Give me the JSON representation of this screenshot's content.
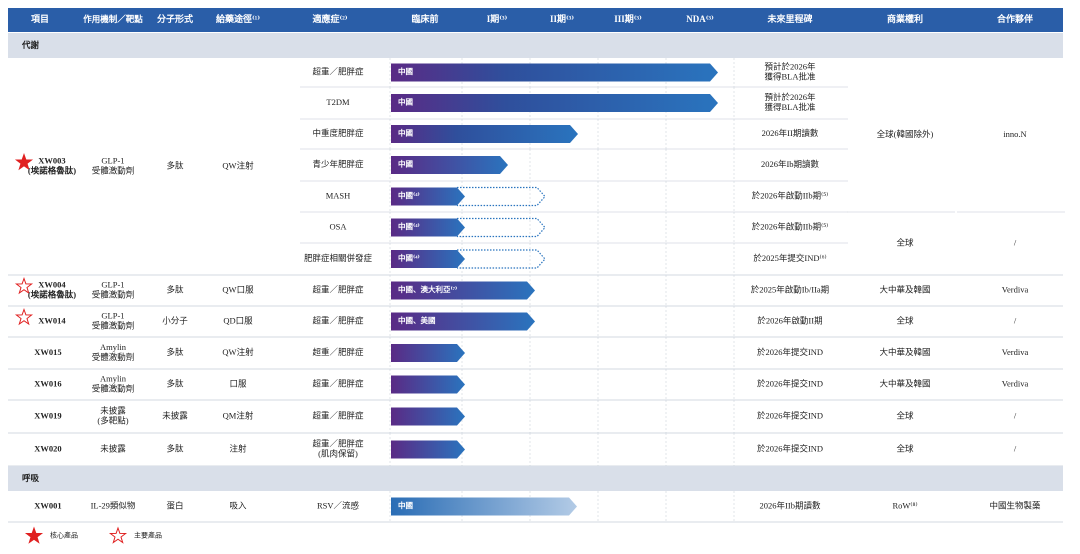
{
  "header": [
    "項目",
    "作用機制／靶點",
    "分子形式",
    "給藥途徑⁽¹⁾",
    "適應症⁽²⁾",
    "臨床前",
    "I期⁽³⁾",
    "II期⁽³⁾",
    "III期⁽³⁾",
    "NDA⁽³⁾",
    "未來里程碑",
    "商業權利",
    "合作夥伴"
  ],
  "sections": [
    {
      "title": "代謝",
      "products": [
        {
          "name": [
            "XW003",
            "(埃諾格魯肽)"
          ],
          "star": "core",
          "mechanism": [
            "GLP-1",
            "受體激動劑"
          ],
          "form": "多肽",
          "route": "QW注射",
          "indications": [
            {
              "name": [
                "超重／肥胖症"
              ],
              "bar_label": "中國",
              "milestone": [
                "預計於2026年",
                "獲得BLA批准"
              ]
            },
            {
              "name": [
                "T2DM"
              ],
              "bar_label": "中國",
              "milestone": [
                "預計於2026年",
                "獲得BLA批准"
              ]
            },
            {
              "name": [
                "中重度肥胖症"
              ],
              "bar_label": "中國",
              "milestone": [
                "2026年II期讀數"
              ]
            },
            {
              "name": [
                "青少年肥胖症"
              ],
              "bar_label": "中國",
              "milestone": [
                "2026年Ib期讀數"
              ]
            },
            {
              "name": [
                "MASH"
              ],
              "bar_label": "中國⁽⁴⁾",
              "milestone": [
                "於2026年啟動IIb期⁽⁵⁾"
              ]
            },
            {
              "name": [
                "OSA"
              ],
              "bar_label": "中國⁽⁴⁾",
              "milestone": [
                "於2026年啟動IIb期⁽⁵⁾"
              ]
            },
            {
              "name": [
                "肥胖症相關併發症"
              ],
              "bar_label": "中國⁽⁴⁾",
              "milestone": [
                "於2025年提交IND⁽⁶⁾"
              ]
            }
          ],
          "rights": [
            {
              "text": "全球(韓國除外)",
              "rows": 5
            },
            {
              "text": "全球",
              "rows": 2
            }
          ],
          "partners": [
            {
              "text": "inno.N",
              "rows": 5
            },
            {
              "text": "/",
              "rows": 2
            }
          ]
        },
        {
          "name": [
            "XW004",
            "(埃諾格魯肽)"
          ],
          "star": "key",
          "mechanism": [
            "GLP-1",
            "受體激動劑"
          ],
          "form": "多肽",
          "route": "QW口服",
          "indications": [
            {
              "name": [
                "超重／肥胖症"
              ],
              "bar_label": "中國、澳大利亞⁽⁷⁾",
              "milestone": [
                "於2025年啟動Ib/IIa期"
              ]
            }
          ],
          "rights": [
            {
              "text": "大中華及韓國",
              "rows": 1
            }
          ],
          "partners": [
            {
              "text": "Verdiva",
              "rows": 1
            }
          ]
        },
        {
          "name": [
            "XW014"
          ],
          "star": "key",
          "mechanism": [
            "GLP-1",
            "受體激動劑"
          ],
          "form": "小分子",
          "route": "QD口服",
          "indications": [
            {
              "name": [
                "超重／肥胖症"
              ],
              "bar_label": "中國、美國",
              "milestone": [
                "於2026年啟動II期"
              ]
            }
          ],
          "rights": [
            {
              "text": "全球",
              "rows": 1
            }
          ],
          "partners": [
            {
              "text": "/",
              "rows": 1
            }
          ]
        },
        {
          "name": [
            "XW015"
          ],
          "mechanism": [
            "Amylin",
            "受體激動劑"
          ],
          "form": "多肽",
          "route": "QW注射",
          "indications": [
            {
              "name": [
                "超重／肥胖症"
              ],
              "milestone": [
                "於2026年提交IND"
              ]
            }
          ],
          "rights": [
            {
              "text": "大中華及韓國",
              "rows": 1
            }
          ],
          "partners": [
            {
              "text": "Verdiva",
              "rows": 1
            }
          ]
        },
        {
          "name": [
            "XW016"
          ],
          "mechanism": [
            "Amylin",
            "受體激動劑"
          ],
          "form": "多肽",
          "route": "口服",
          "indications": [
            {
              "name": [
                "超重／肥胖症"
              ],
              "milestone": [
                "於2026年提交IND"
              ]
            }
          ],
          "rights": [
            {
              "text": "大中華及韓國",
              "rows": 1
            }
          ],
          "partners": [
            {
              "text": "Verdiva",
              "rows": 1
            }
          ]
        },
        {
          "name": [
            "XW019"
          ],
          "mechanism": [
            "未披露",
            "(多靶點)"
          ],
          "form": "未披露",
          "route": "QM注射",
          "indications": [
            {
              "name": [
                "超重／肥胖症"
              ],
              "milestone": [
                "於2026年提交IND"
              ]
            }
          ],
          "rights": [
            {
              "text": "全球",
              "rows": 1
            }
          ],
          "partners": [
            {
              "text": "/",
              "rows": 1
            }
          ]
        },
        {
          "name": [
            "XW020"
          ],
          "mechanism": [
            "未披露"
          ],
          "form": "多肽",
          "route": "注射",
          "indications": [
            {
              "name": [
                "超重／肥胖症",
                "(肌肉保留)"
              ],
              "milestone": [
                "於2026年提交IND"
              ]
            }
          ],
          "rights": [
            {
              "text": "全球",
              "rows": 1
            }
          ],
          "partners": [
            {
              "text": "/",
              "rows": 1
            }
          ]
        }
      ]
    },
    {
      "title": "呼吸",
      "products": [
        {
          "name": [
            "XW001"
          ],
          "mechanism": [
            "IL-29類似物"
          ],
          "form": "蛋白",
          "route": "吸入",
          "indications": [
            {
              "name": [
                "RSV／流感"
              ],
              "bar_label": "中國",
              "milestone": [
                "2026年IIb期讀數"
              ]
            }
          ],
          "rights": [
            {
              "text": "RoW⁽⁸⁾",
              "rows": 1
            }
          ],
          "partners": [
            {
              "text": "中國生物製藥",
              "rows": 1
            }
          ]
        }
      ]
    }
  ],
  "legend": {
    "core": "核心產品",
    "key": "主要產品"
  }
}
